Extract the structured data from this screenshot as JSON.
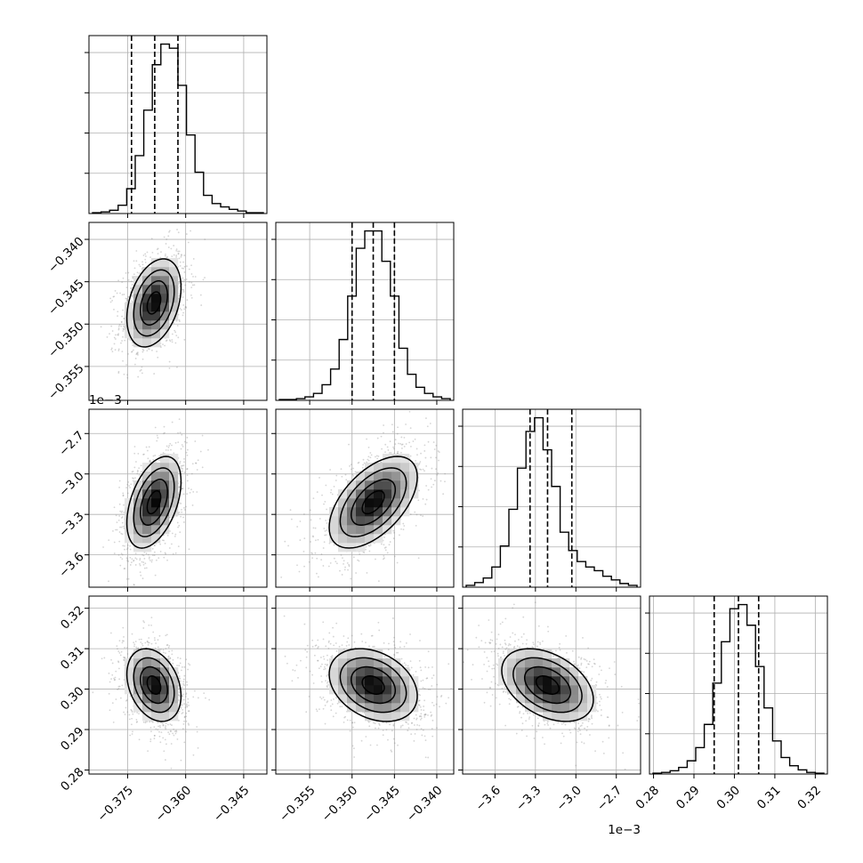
{
  "chart_data": {
    "type": "corner",
    "title": "",
    "n_params": 4,
    "params": [
      {
        "xlim": [
          -0.385,
          -0.339
        ],
        "ticks": [
          -0.375,
          -0.36,
          -0.345
        ],
        "tick_labels": [
          "−0.375",
          "−0.360",
          "−0.345"
        ],
        "offset_label": ""
      },
      {
        "xlim": [
          -0.359,
          -0.338
        ],
        "ticks": [
          -0.355,
          -0.35,
          -0.345,
          -0.34
        ],
        "tick_labels": [
          "−0.355",
          "−0.350",
          "−0.345",
          "−0.340"
        ],
        "offset_label": ""
      },
      {
        "xlim": [
          -3.84,
          -2.52
        ],
        "ticks": [
          -3.6,
          -3.3,
          -3.0,
          -2.7
        ],
        "tick_labels": [
          "−3.6",
          "−3.3",
          "−3.0",
          "−2.7"
        ],
        "offset_label": "1e−3"
      },
      {
        "xlim": [
          0.279,
          0.323
        ],
        "ticks": [
          0.28,
          0.29,
          0.3,
          0.31,
          0.32
        ],
        "tick_labels": [
          "0.28",
          "0.29",
          "0.30",
          "0.31",
          "0.32"
        ],
        "offset_label": ""
      }
    ],
    "marginals": [
      {
        "quantiles": [
          -0.374,
          -0.368,
          -0.362
        ],
        "values": [
          1,
          2,
          4,
          10,
          30,
          70,
          125,
          180,
          205,
          200,
          155,
          95,
          50,
          22,
          12,
          8,
          5,
          3,
          1,
          1
        ]
      },
      {
        "quantiles": [
          -0.35,
          -0.3475,
          -0.345
        ],
        "values": [
          1,
          1,
          2,
          4,
          8,
          18,
          36,
          70,
          120,
          175,
          195,
          195,
          160,
          120,
          60,
          30,
          15,
          8,
          4,
          2
        ]
      },
      {
        "quantiles": [
          -3.34,
          -3.21,
          -3.03
        ],
        "values": [
          2,
          5,
          10,
          22,
          45,
          85,
          130,
          170,
          185,
          150,
          110,
          60,
          40,
          28,
          22,
          18,
          12,
          8,
          4,
          2
        ]
      },
      {
        "quantiles": [
          0.295,
          0.301,
          0.306
        ],
        "values": [
          1,
          2,
          4,
          8,
          16,
          32,
          60,
          110,
          160,
          200,
          205,
          180,
          130,
          80,
          40,
          20,
          10,
          5,
          2,
          1
        ]
      }
    ],
    "joint": [
      {
        "row": 1,
        "col": 0,
        "mean": [
          -0.3682,
          -0.3475
        ],
        "sd": [
          0.0035,
          0.0026
        ],
        "corr": 0.35,
        "levels": 3
      },
      {
        "row": 2,
        "col": 0,
        "mean": [
          -0.3682,
          -3.21
        ],
        "sd": [
          0.0035,
          0.17
        ],
        "corr": 0.45,
        "levels": 3
      },
      {
        "row": 2,
        "col": 1,
        "mean": [
          -0.3475,
          -3.21
        ],
        "sd": [
          0.0026,
          0.17
        ],
        "corr": 0.55,
        "levels": 3
      },
      {
        "row": 3,
        "col": 0,
        "mean": [
          -0.3682,
          0.301
        ],
        "sd": [
          0.0035,
          0.0045
        ],
        "corr": -0.3,
        "levels": 3
      },
      {
        "row": 3,
        "col": 1,
        "mean": [
          -0.3475,
          0.301
        ],
        "sd": [
          0.0026,
          0.0045
        ],
        "corr": -0.3,
        "levels": 3
      },
      {
        "row": 3,
        "col": 2,
        "mean": [
          -3.21,
          0.301
        ],
        "sd": [
          0.17,
          0.0045
        ],
        "corr": -0.4,
        "levels": 3
      }
    ],
    "grid": true,
    "colors": {
      "contour": "#000000",
      "grid": "#b0b0b0",
      "scatter": "#888888",
      "frame": "#000000"
    }
  }
}
